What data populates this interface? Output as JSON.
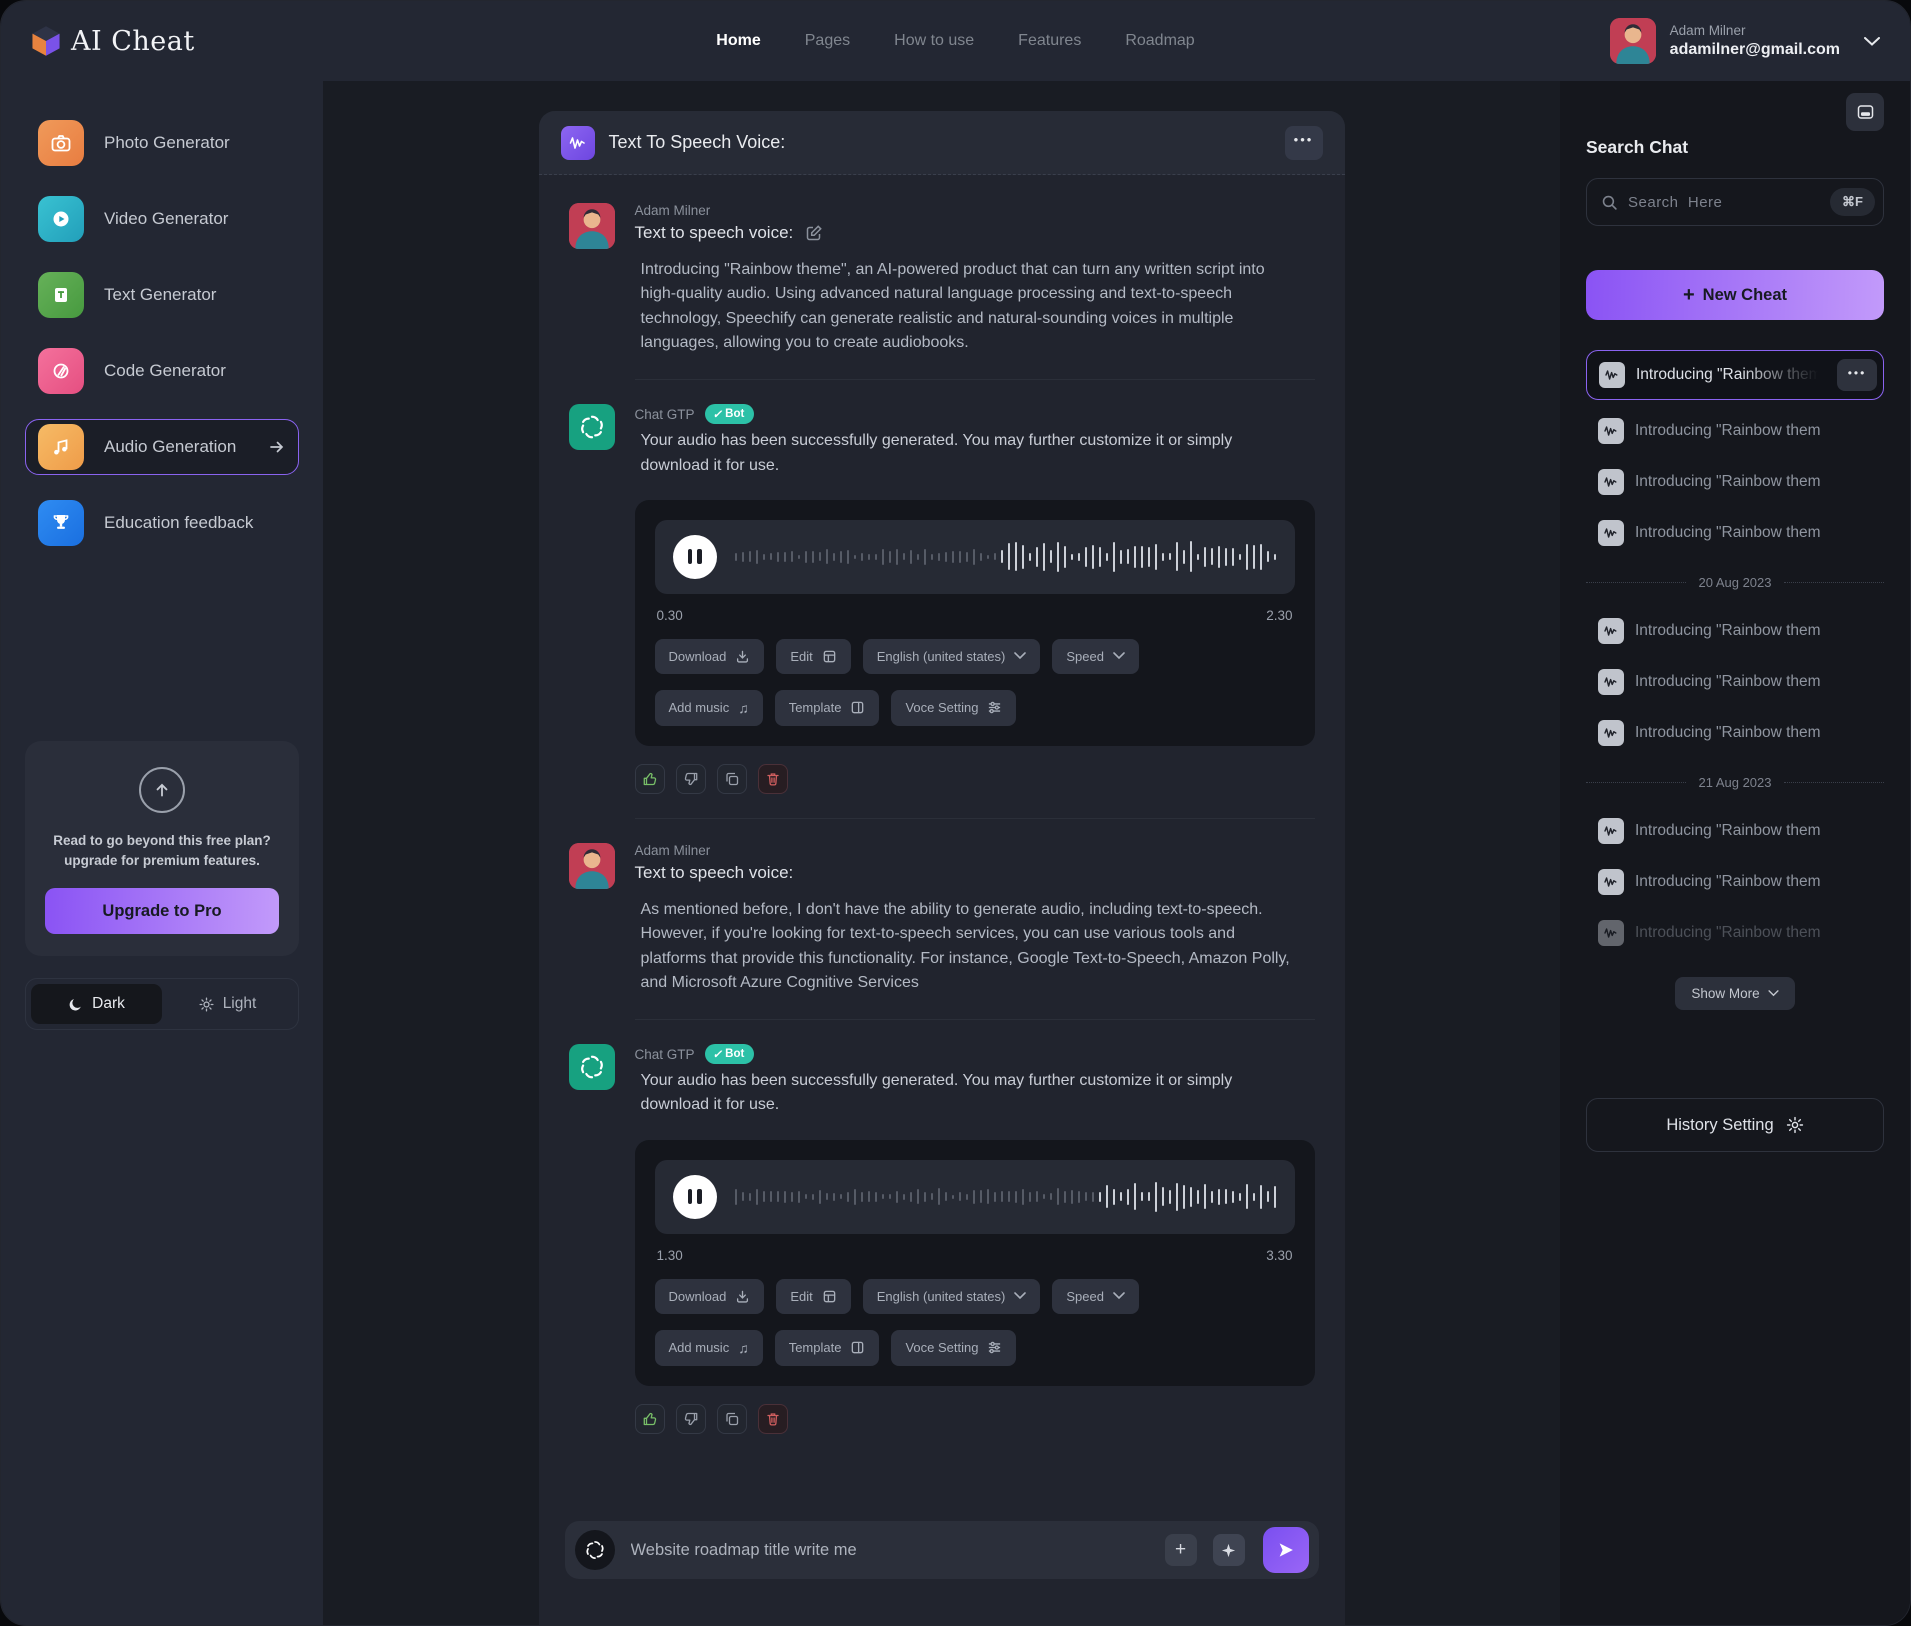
{
  "colors": {
    "accent_purple": "#8a63f0",
    "button_gradient_from": "#8a53f4",
    "button_gradient_to": "#c29afa",
    "bot_badge_teal": "#2cc1a7",
    "like_green": "#78bf68",
    "delete_red": "#d05f5f"
  },
  "navbar": {
    "brand": "AI Cheat",
    "links": [
      {
        "label": "Home",
        "active": true
      },
      {
        "label": "Pages",
        "active": false
      },
      {
        "label": "How to use",
        "active": false
      },
      {
        "label": "Features",
        "active": false
      },
      {
        "label": "Roadmap",
        "active": false
      }
    ],
    "user": {
      "name": "Adam Milner",
      "email": "adamilner@gmail.com"
    }
  },
  "sidebar": {
    "items": [
      {
        "label": "Photo Generator",
        "color": "#ee8a4d",
        "active": false
      },
      {
        "label": "Video Generator",
        "color": "#2fb7c8",
        "active": false
      },
      {
        "label": "Text Generator",
        "color": "#57a74b",
        "active": false
      },
      {
        "label": "Code Generator",
        "color": "#ee5f8e",
        "active": false
      },
      {
        "label": "Audio Generation",
        "color": "#f2ac57",
        "active": true
      },
      {
        "label": "Education feedback",
        "color": "#1f7ceb",
        "active": false
      }
    ],
    "upgrade": {
      "line1": "Read to go beyond this free plan?",
      "line2": "upgrade for premium features.",
      "button": "Upgrade to Pro"
    },
    "theme": {
      "dark": "Dark",
      "light": "Light",
      "active": "Dark"
    }
  },
  "chat": {
    "title": "Text To Speech Voice:",
    "messages": [
      {
        "author": "Adam Milner",
        "subtitle": "Text to speech voice:",
        "body": "Introducing \"Rainbow theme\", an AI-powered product that can turn any written script into high-quality audio. Using advanced natural language processing and text-to-speech technology, Speechify can generate realistic and natural-sounding voices in multiple languages, allowing you to create audiobooks."
      },
      {
        "author": "Chat GTP",
        "badge": "Bot",
        "body": "Your audio has been successfully generated. You may further customize it or simply download it for use."
      },
      {
        "author": "Adam Milner",
        "subtitle": "Text to speech voice:",
        "body": "As mentioned before, I don't have the ability to generate audio, including text-to-speech. However, if you're looking for text-to-speech services, you can use various tools and platforms that provide this functionality. For instance, Google Text-to-Speech, Amazon Polly, and Microsoft Azure Cognitive Services"
      },
      {
        "author": "Chat GTP",
        "badge": "Bot",
        "body": "Your audio has been successfully generated. You may further customize it or simply download it for use."
      }
    ],
    "players": [
      {
        "start": "0.30",
        "end": "2.30",
        "progress": 0.46
      },
      {
        "start": "1.30",
        "end": "3.30",
        "progress": 0.63
      }
    ],
    "controls": {
      "row1": [
        "Download",
        "Edit",
        "English (united states)",
        "Speed"
      ],
      "row2": [
        "Add music",
        "Template",
        "Voce Setting"
      ]
    },
    "input": {
      "placeholder": "Website roadmap title write me",
      "value": ""
    }
  },
  "right_panel": {
    "heading": "Search Chat",
    "search": {
      "placeholder": "Search  Here",
      "shortcut": "⌘F",
      "value": ""
    },
    "new_cheat": "New Cheat",
    "active_item": "Introducing \"Rainbow theme\", a",
    "groups": [
      {
        "items": [
          "Introducing \"Rainbow them",
          "Introducing \"Rainbow them",
          "Introducing \"Rainbow them"
        ]
      },
      {
        "date": "20 Aug 2023",
        "items": [
          "Introducing \"Rainbow them",
          "Introducing \"Rainbow them",
          "Introducing \"Rainbow them"
        ]
      },
      {
        "date": "21 Aug 2023",
        "items": [
          "Introducing \"Rainbow them",
          "Introducing \"Rainbow them",
          "Introducing \"Rainbow them"
        ]
      }
    ],
    "show_more": "Show More",
    "history_setting": "History Setting"
  },
  "icons": {
    "check": "✓",
    "plus": "+",
    "ellipsis": "•••",
    "music_note": "♫"
  }
}
